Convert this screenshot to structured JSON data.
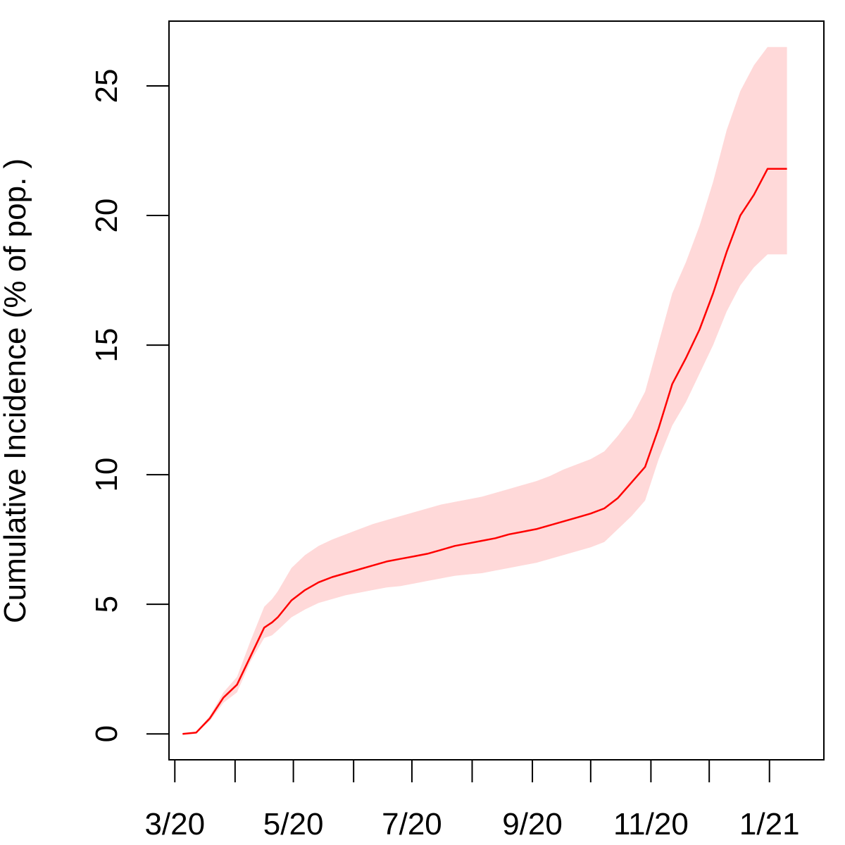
{
  "chart_data": {
    "type": "line",
    "title": "",
    "xlabel": "",
    "ylabel": "Cumulative Incidence (% of pop. )",
    "xlim": [
      "2020-02-27",
      "2021-01-29"
    ],
    "ylim": [
      -1,
      27.5
    ],
    "x_tick_dates": [
      "2020-03-01",
      "2020-04-01",
      "2020-05-01",
      "2020-06-01",
      "2020-07-01",
      "2020-08-01",
      "2020-09-01",
      "2020-10-01",
      "2020-11-01",
      "2020-12-01",
      "2021-01-01"
    ],
    "x_tick_labels": [
      "3/20",
      "",
      "5/20",
      "",
      "7/20",
      "",
      "9/20",
      "",
      "11/20",
      "",
      "1/21"
    ],
    "y_ticks": [
      0,
      5,
      10,
      15,
      20,
      25
    ],
    "y_tick_labels": [
      "0",
      "5",
      "10",
      "15",
      "20",
      "25"
    ],
    "grid": false,
    "legend": "none",
    "series": [
      {
        "color": "#ff0000",
        "band_color": "#ffd9d9",
        "x": [
          "2020-03-05",
          "2020-03-12",
          "2020-03-19",
          "2020-03-26",
          "2020-04-02",
          "2020-04-09",
          "2020-04-16",
          "2020-04-20",
          "2020-04-23",
          "2020-04-30",
          "2020-05-07",
          "2020-05-14",
          "2020-05-21",
          "2020-05-28",
          "2020-06-04",
          "2020-06-11",
          "2020-06-18",
          "2020-06-25",
          "2020-07-02",
          "2020-07-09",
          "2020-07-16",
          "2020-07-23",
          "2020-07-30",
          "2020-08-06",
          "2020-08-13",
          "2020-08-20",
          "2020-08-27",
          "2020-09-03",
          "2020-09-10",
          "2020-09-17",
          "2020-09-24",
          "2020-10-01",
          "2020-10-08",
          "2020-10-15",
          "2020-10-22",
          "2020-10-29",
          "2020-11-05",
          "2020-11-12",
          "2020-11-19",
          "2020-11-26",
          "2020-12-03",
          "2020-12-10",
          "2020-12-17",
          "2020-12-24",
          "2020-12-31",
          "2021-01-07",
          "2021-01-10"
        ],
        "values": [
          0.0,
          0.05,
          0.6,
          1.4,
          1.9,
          3.0,
          4.1,
          4.3,
          4.5,
          5.15,
          5.55,
          5.85,
          6.05,
          6.2,
          6.35,
          6.5,
          6.65,
          6.75,
          6.85,
          6.95,
          7.1,
          7.25,
          7.35,
          7.45,
          7.55,
          7.7,
          7.8,
          7.9,
          8.05,
          8.2,
          8.35,
          8.5,
          8.7,
          9.1,
          9.7,
          10.3,
          11.8,
          13.5,
          14.5,
          15.6,
          17.0,
          18.6,
          20.0,
          20.8,
          21.8,
          21.8,
          21.8
        ],
        "lower": [
          0.0,
          0.05,
          0.5,
          1.2,
          1.6,
          2.8,
          3.7,
          3.8,
          4.0,
          4.5,
          4.8,
          5.05,
          5.2,
          5.35,
          5.45,
          5.55,
          5.65,
          5.7,
          5.8,
          5.9,
          6.0,
          6.1,
          6.15,
          6.2,
          6.3,
          6.4,
          6.5,
          6.6,
          6.75,
          6.9,
          7.05,
          7.2,
          7.4,
          7.9,
          8.4,
          9.0,
          10.6,
          11.9,
          12.8,
          13.9,
          15.0,
          16.3,
          17.3,
          18.0,
          18.5,
          18.5,
          18.5
        ],
        "upper": [
          0.0,
          0.06,
          0.7,
          1.6,
          2.2,
          3.6,
          4.9,
          5.2,
          5.5,
          6.4,
          6.9,
          7.25,
          7.5,
          7.7,
          7.9,
          8.1,
          8.25,
          8.4,
          8.55,
          8.7,
          8.85,
          8.95,
          9.05,
          9.15,
          9.3,
          9.45,
          9.6,
          9.75,
          9.95,
          10.2,
          10.4,
          10.6,
          10.9,
          11.5,
          12.2,
          13.2,
          15.1,
          17.0,
          18.2,
          19.6,
          21.3,
          23.3,
          24.8,
          25.8,
          26.5,
          26.5,
          26.5
        ]
      }
    ]
  }
}
